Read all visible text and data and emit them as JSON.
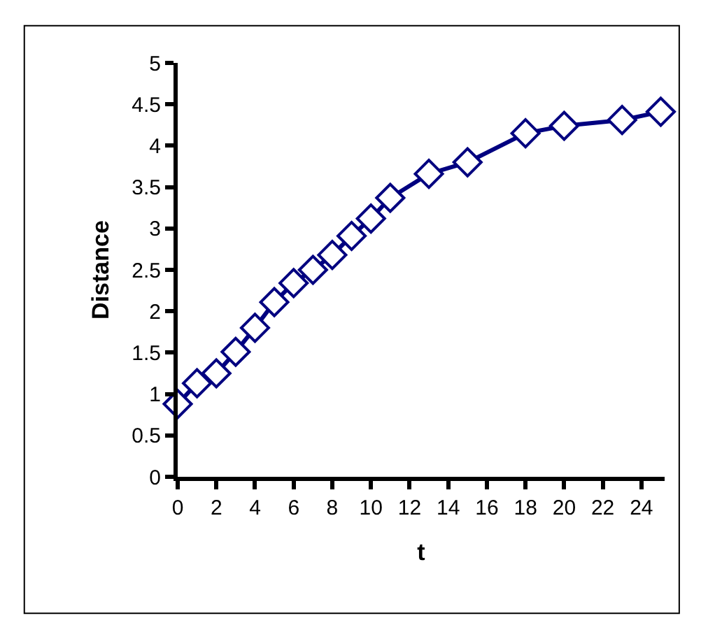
{
  "chart_data": {
    "type": "line",
    "xlabel": "t",
    "ylabel": "Distance",
    "x": [
      0,
      1,
      2,
      3,
      4,
      5,
      6,
      7,
      8,
      9,
      10,
      11,
      13,
      15,
      18,
      20,
      23,
      25
    ],
    "series": [
      {
        "color": "#000080",
        "values": [
          0.88,
          1.13,
          1.25,
          1.51,
          1.8,
          2.11,
          2.34,
          2.5,
          2.68,
          2.91,
          3.12,
          3.37,
          3.66,
          3.8,
          4.15,
          4.24,
          4.31,
          4.41
        ]
      }
    ],
    "xlim": [
      0,
      25.2
    ],
    "xticks": [
      0,
      2,
      4,
      6,
      8,
      10,
      12,
      14,
      16,
      18,
      20,
      22,
      24
    ],
    "ylim": [
      0,
      5
    ],
    "yticks": [
      0,
      0.5,
      1,
      1.5,
      2,
      2.5,
      3,
      3.5,
      4,
      4.5,
      5
    ],
    "marker": "diamond",
    "line_style": "solid",
    "grid": false
  }
}
